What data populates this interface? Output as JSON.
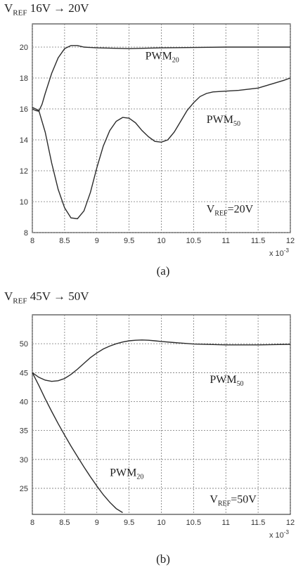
{
  "chart_data": [
    {
      "type": "line",
      "title": {
        "v": "V",
        "sub": "REF",
        "rest": " 16V → 20V"
      },
      "caption": "(a)",
      "xlim": [
        8,
        12
      ],
      "ylim": [
        8,
        21.5
      ],
      "x_ticks": [
        "8",
        "8.5",
        "9",
        "9.5",
        "10",
        "10.5",
        "11",
        "11.5",
        "12"
      ],
      "y_ticks": [
        "8",
        "10",
        "12",
        "14",
        "16",
        "18",
        "20"
      ],
      "x_multiplier": {
        "base": "x 10",
        "exp": "-3"
      },
      "grid": true,
      "annotations": [
        {
          "base": "PWM",
          "sub": "20",
          "rest": "",
          "x": 9.75,
          "y": 19.2
        },
        {
          "base": "PWM",
          "sub": "50",
          "rest": "",
          "x": 10.7,
          "y": 15.1
        },
        {
          "base": "V",
          "sub": "REF",
          "rest": "=20V",
          "x": 10.7,
          "y": 9.3
        }
      ],
      "series": [
        {
          "name": "PWM20",
          "points": [
            [
              8.0,
              16.0
            ],
            [
              8.05,
              15.9
            ],
            [
              8.1,
              15.85
            ],
            [
              8.15,
              16.3
            ],
            [
              8.2,
              17.0
            ],
            [
              8.3,
              18.3
            ],
            [
              8.4,
              19.3
            ],
            [
              8.5,
              19.9
            ],
            [
              8.6,
              20.1
            ],
            [
              8.7,
              20.1
            ],
            [
              8.8,
              20.0
            ],
            [
              9.0,
              19.95
            ],
            [
              9.5,
              19.9
            ],
            [
              10.0,
              19.95
            ],
            [
              11.0,
              20.0
            ],
            [
              12.0,
              20.0
            ]
          ]
        },
        {
          "name": "PWM50",
          "points": [
            [
              8.0,
              16.1
            ],
            [
              8.1,
              15.9
            ],
            [
              8.2,
              14.5
            ],
            [
              8.3,
              12.5
            ],
            [
              8.4,
              10.8
            ],
            [
              8.5,
              9.6
            ],
            [
              8.6,
              8.95
            ],
            [
              8.7,
              8.9
            ],
            [
              8.8,
              9.4
            ],
            [
              8.9,
              10.6
            ],
            [
              9.0,
              12.2
            ],
            [
              9.1,
              13.6
            ],
            [
              9.2,
              14.6
            ],
            [
              9.3,
              15.2
            ],
            [
              9.4,
              15.45
            ],
            [
              9.5,
              15.4
            ],
            [
              9.6,
              15.1
            ],
            [
              9.7,
              14.6
            ],
            [
              9.8,
              14.2
            ],
            [
              9.9,
              13.9
            ],
            [
              10.0,
              13.85
            ],
            [
              10.1,
              14.0
            ],
            [
              10.2,
              14.5
            ],
            [
              10.3,
              15.2
            ],
            [
              10.4,
              15.9
            ],
            [
              10.5,
              16.4
            ],
            [
              10.6,
              16.8
            ],
            [
              10.7,
              17.0
            ],
            [
              10.8,
              17.1
            ],
            [
              11.0,
              17.15
            ],
            [
              11.2,
              17.2
            ],
            [
              11.5,
              17.35
            ],
            [
              11.7,
              17.6
            ],
            [
              11.9,
              17.85
            ],
            [
              12.0,
              18.0
            ]
          ]
        }
      ]
    },
    {
      "type": "line",
      "title": {
        "v": "V",
        "sub": "REF",
        "rest": " 45V → 50V"
      },
      "caption": "(b)",
      "xlim": [
        8,
        12
      ],
      "ylim": [
        20.5,
        55
      ],
      "x_ticks": [
        "8",
        "8.5",
        "9",
        "9.5",
        "10",
        "10.5",
        "11",
        "11.5",
        "12"
      ],
      "y_ticks": [
        "25",
        "30",
        "35",
        "40",
        "45",
        "50"
      ],
      "x_multiplier": {
        "base": "x 10",
        "exp": "-3"
      },
      "grid": true,
      "annotations": [
        {
          "base": "PWM",
          "sub": "50",
          "rest": "",
          "x": 10.75,
          "y": 43.2
        },
        {
          "base": "PWM",
          "sub": "20",
          "rest": "",
          "x": 9.2,
          "y": 27.1
        },
        {
          "base": "V",
          "sub": "REF",
          "rest": "=50V",
          "x": 10.75,
          "y": 22.5
        }
      ],
      "series": [
        {
          "name": "PWM50",
          "points": [
            [
              8.0,
              45.0
            ],
            [
              8.1,
              44.2
            ],
            [
              8.2,
              43.7
            ],
            [
              8.3,
              43.5
            ],
            [
              8.4,
              43.6
            ],
            [
              8.5,
              44.0
            ],
            [
              8.6,
              44.7
            ],
            [
              8.7,
              45.6
            ],
            [
              8.8,
              46.6
            ],
            [
              8.9,
              47.6
            ],
            [
              9.0,
              48.4
            ],
            [
              9.1,
              49.1
            ],
            [
              9.2,
              49.6
            ],
            [
              9.3,
              50.0
            ],
            [
              9.4,
              50.3
            ],
            [
              9.5,
              50.5
            ],
            [
              9.6,
              50.6
            ],
            [
              9.7,
              50.65
            ],
            [
              9.8,
              50.6
            ],
            [
              9.9,
              50.5
            ],
            [
              10.0,
              50.4
            ],
            [
              10.2,
              50.2
            ],
            [
              10.5,
              49.95
            ],
            [
              11.0,
              49.8
            ],
            [
              11.5,
              49.8
            ],
            [
              12.0,
              49.9
            ]
          ]
        },
        {
          "name": "PWM20",
          "points": [
            [
              8.0,
              45.0
            ],
            [
              8.1,
              42.8
            ],
            [
              8.2,
              40.5
            ],
            [
              8.3,
              38.3
            ],
            [
              8.4,
              36.2
            ],
            [
              8.5,
              34.2
            ],
            [
              8.6,
              32.3
            ],
            [
              8.7,
              30.5
            ],
            [
              8.8,
              28.7
            ],
            [
              8.9,
              27.0
            ],
            [
              9.0,
              25.4
            ],
            [
              9.1,
              23.9
            ],
            [
              9.2,
              22.6
            ],
            [
              9.3,
              21.5
            ],
            [
              9.4,
              20.8
            ]
          ]
        }
      ]
    }
  ]
}
